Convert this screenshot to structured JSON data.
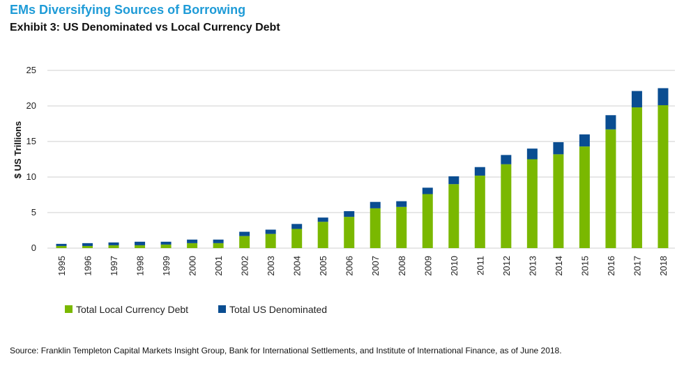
{
  "header": {
    "title": "EMs Diversifying Sources of Borrowing",
    "subtitle": "Exhibit 3: US Denominated vs Local Currency Debt"
  },
  "footer": {
    "source": "Source: Franklin Templeton Capital Markets Insight Group, Bank for International Settlements, and Institute of International Finance, as of June 2018."
  },
  "colors": {
    "local": "#7ab800",
    "us": "#0a4d91",
    "title": "#1e9bd7",
    "grid": "#cfcfcf"
  },
  "chart_data": {
    "type": "bar",
    "stacked": true,
    "ylabel": "$ US Trillions",
    "xlabel": "",
    "ylim": [
      0,
      25
    ],
    "yticks": [
      0,
      5,
      10,
      15,
      20,
      25
    ],
    "grid": true,
    "legend_position": "bottom-left",
    "categories": [
      "1995",
      "1996",
      "1997",
      "1998",
      "1999",
      "2000",
      "2001",
      "2002",
      "2003",
      "2004",
      "2005",
      "2006",
      "2007",
      "2008",
      "2009",
      "2010",
      "2011",
      "2012",
      "2013",
      "2014",
      "2015",
      "2016",
      "2017",
      "2018"
    ],
    "series": [
      {
        "name": "Total Local Currency Debt",
        "color": "#7ab800",
        "values": [
          0.3,
          0.3,
          0.4,
          0.4,
          0.5,
          0.7,
          0.7,
          1.7,
          2.0,
          2.7,
          3.7,
          4.4,
          5.6,
          5.8,
          7.6,
          9.0,
          10.2,
          11.8,
          12.5,
          13.2,
          14.3,
          16.7,
          19.8,
          20.1
        ]
      },
      {
        "name": "Total US Denominated",
        "color": "#0a4d91",
        "values": [
          0.3,
          0.4,
          0.4,
          0.5,
          0.4,
          0.5,
          0.5,
          0.6,
          0.6,
          0.7,
          0.6,
          0.8,
          0.9,
          0.8,
          0.9,
          1.1,
          1.2,
          1.3,
          1.5,
          1.7,
          1.7,
          2.0,
          2.3,
          2.4
        ]
      }
    ]
  }
}
